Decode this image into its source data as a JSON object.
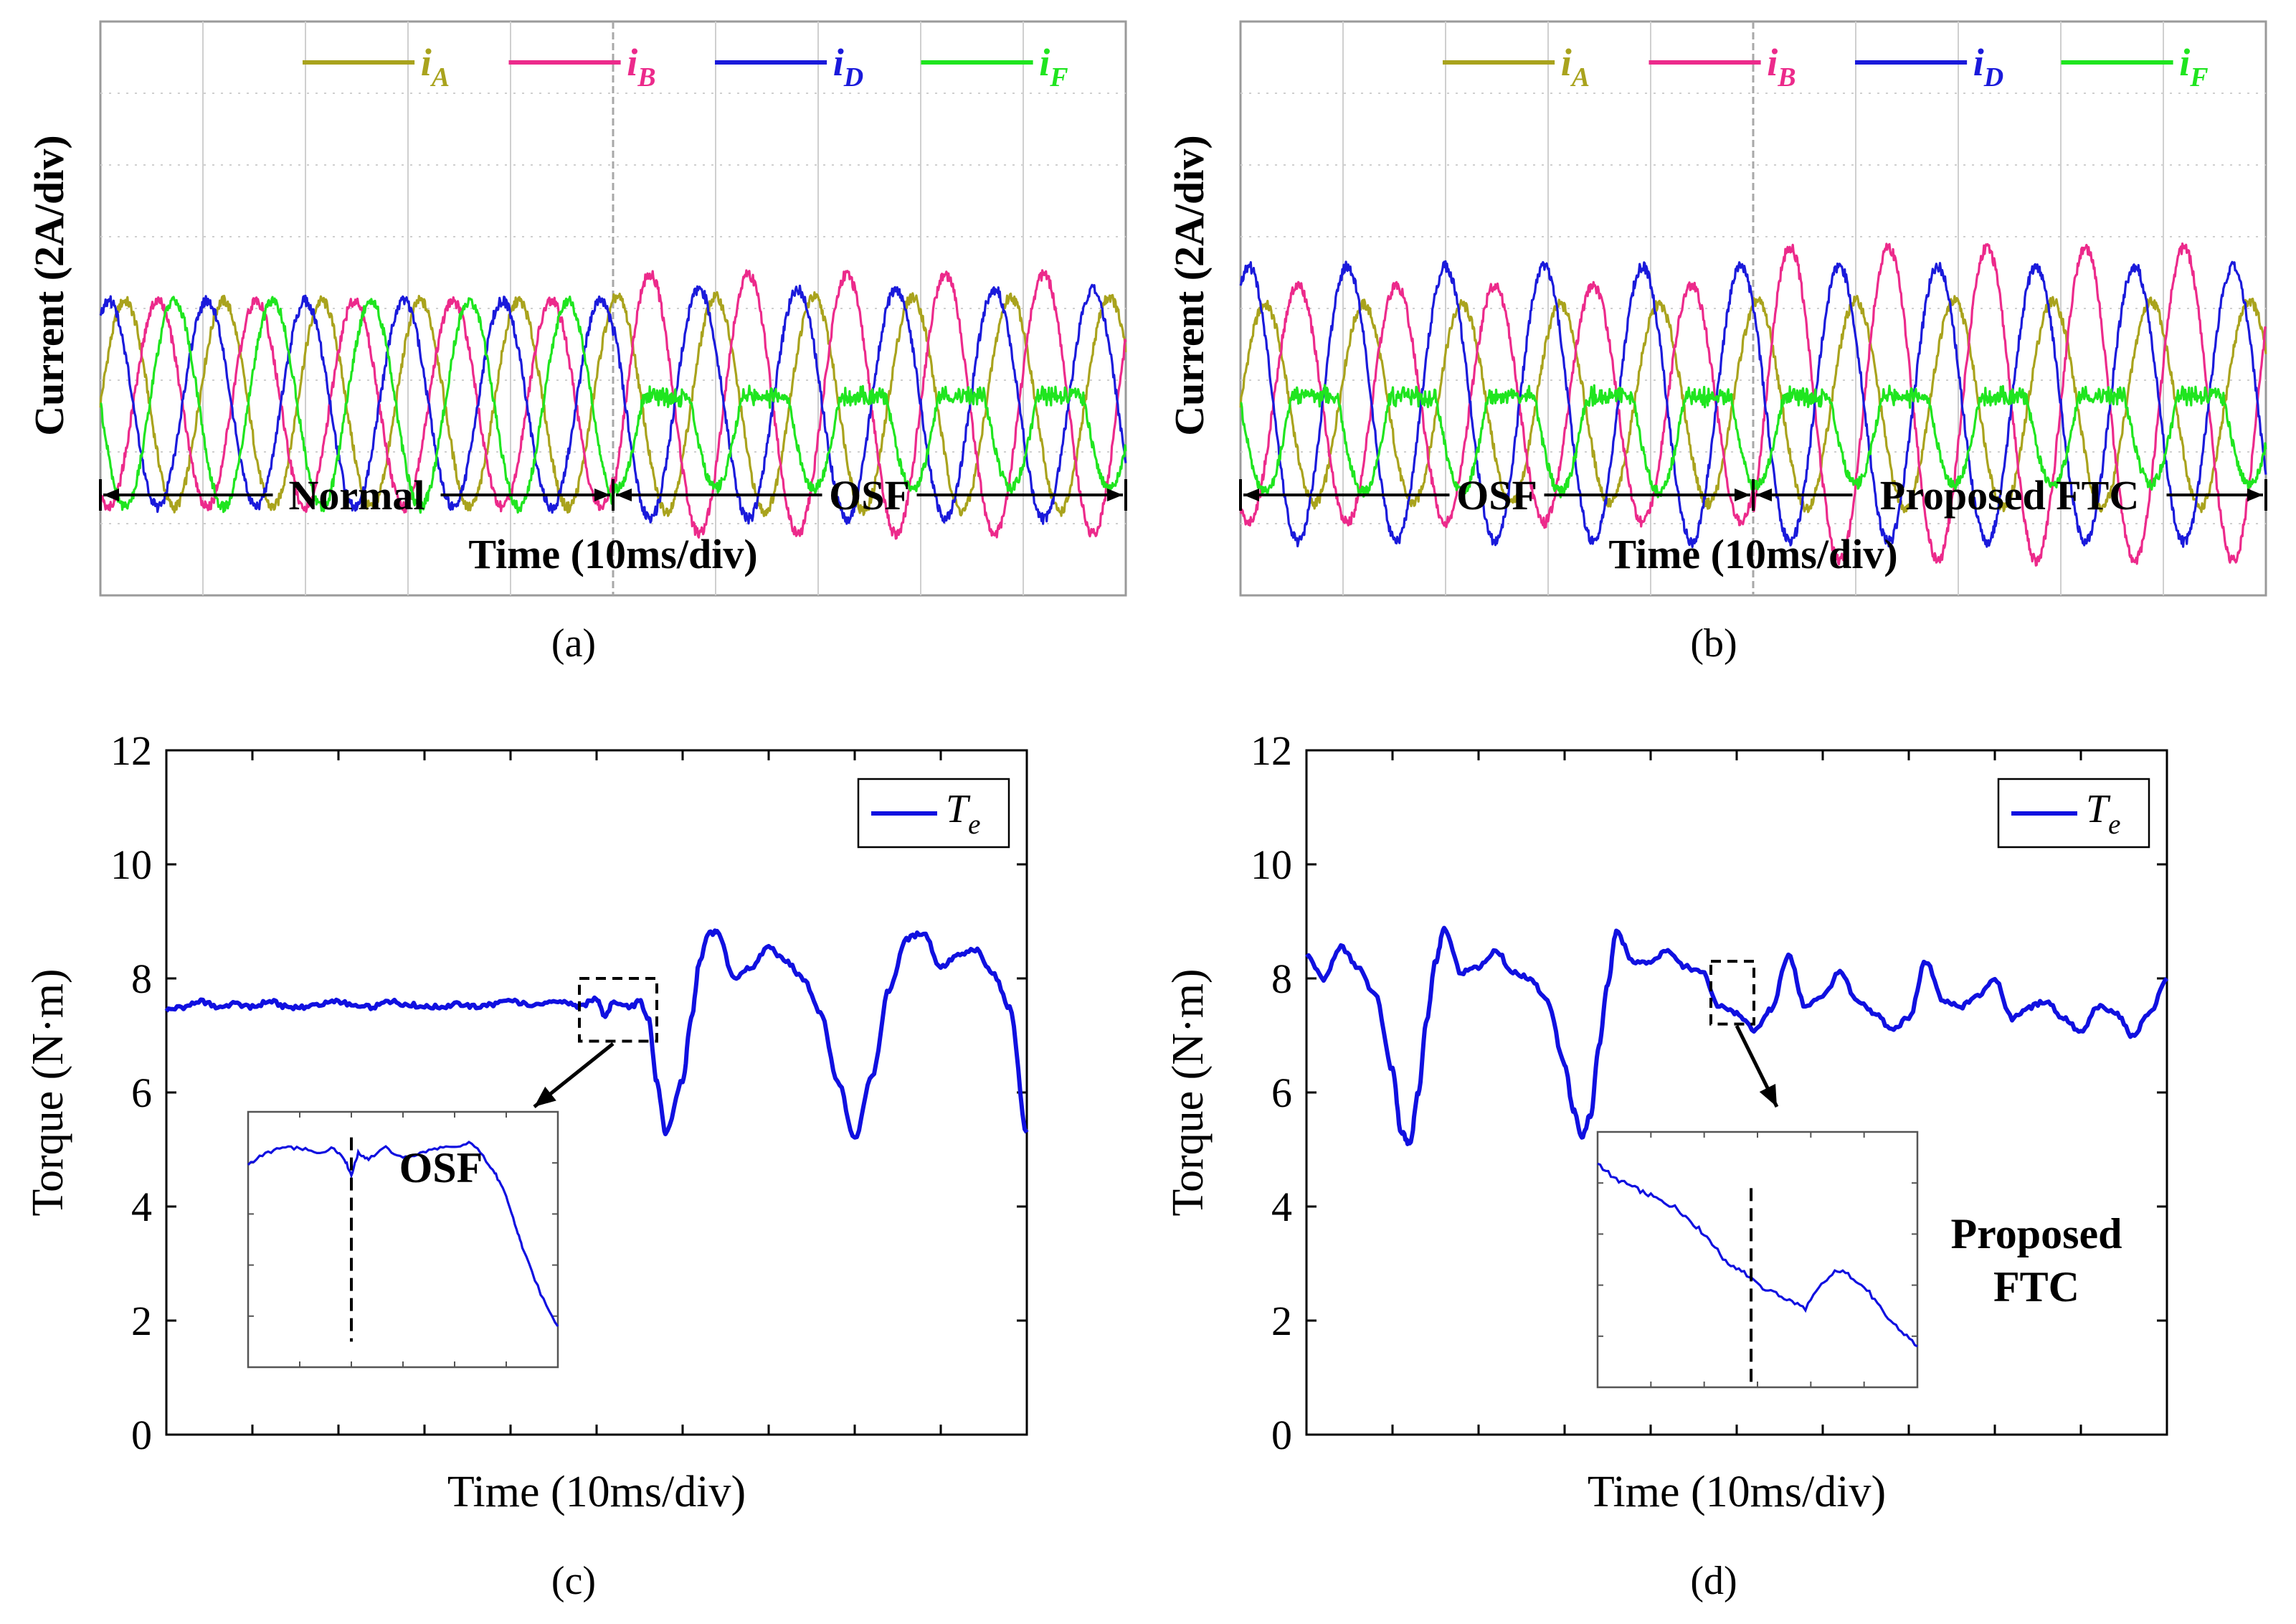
{
  "figure": {
    "panels": [
      {
        "id": "a",
        "caption": "(a)"
      },
      {
        "id": "b",
        "caption": "(b)"
      },
      {
        "id": "c",
        "caption": "(c)"
      },
      {
        "id": "d",
        "caption": "(d)"
      }
    ]
  },
  "chart_data": [
    {
      "panel": "a",
      "type": "line",
      "ylabel": "Current (2A/div)",
      "xlabel": "Time (10ms/div)",
      "grid": true,
      "legend": {
        "position": "top-right",
        "entries": [
          "iA",
          "iB",
          "iD",
          "iF"
        ]
      },
      "legend_label_parts": [
        {
          "main": "i",
          "sub": "A"
        },
        {
          "main": "i",
          "sub": "B"
        },
        {
          "main": "i",
          "sub": "D"
        },
        {
          "main": "i",
          "sub": "F"
        }
      ],
      "units": {
        "y": "A",
        "x": "ms"
      },
      "colors": {
        "iA": "#a9a31d",
        "iB": "#ec2a8b",
        "iD": "#1a1adb",
        "iF": "#1fe51f"
      },
      "segments": [
        {
          "label": "Normal",
          "x_range_ms": [
            0,
            50
          ]
        },
        {
          "label": "OSF",
          "x_range_ms": [
            50,
            100
          ]
        }
      ],
      "x_range_ms": [
        0,
        100
      ],
      "y_range_A": [
        -5,
        10
      ],
      "series": [
        {
          "name": "iA",
          "segments": [
            {
              "from_ms": 0,
              "to_ms": 50,
              "amplitude_A": 2.7,
              "phase_deg": 0
            },
            {
              "from_ms": 50,
              "to_ms": 100,
              "amplitude_A": 2.8,
              "phase_deg": 0
            }
          ]
        },
        {
          "name": "iB",
          "segments": [
            {
              "from_ms": 0,
              "to_ms": 50,
              "amplitude_A": 2.7,
              "phase_deg": -120
            },
            {
              "from_ms": 50,
              "to_ms": 100,
              "amplitude_A": 3.4,
              "phase_deg": -120
            }
          ]
        },
        {
          "name": "iD",
          "segments": [
            {
              "from_ms": 0,
              "to_ms": 50,
              "amplitude_A": 2.7,
              "phase_deg": 60
            },
            {
              "from_ms": 50,
              "to_ms": 100,
              "amplitude_A": 3.0,
              "phase_deg": 60
            }
          ]
        },
        {
          "name": "iF",
          "segments": [
            {
              "from_ms": 0,
              "to_ms": 50,
              "amplitude_A": 2.7,
              "phase_deg": 180
            },
            {
              "from_ms": 50,
              "to_ms": 100,
              "amplitude_A": 2.2,
              "phase_deg": 180
            }
          ]
        }
      ],
      "fundamental_period_ms": 9.6
    },
    {
      "panel": "b",
      "type": "line",
      "ylabel": "Current (2A/div)",
      "xlabel": "Time (10ms/div)",
      "grid": true,
      "legend": {
        "position": "top-right",
        "entries": [
          "iA",
          "iB",
          "iD",
          "iF"
        ]
      },
      "legend_label_parts": [
        {
          "main": "i",
          "sub": "A"
        },
        {
          "main": "i",
          "sub": "B"
        },
        {
          "main": "i",
          "sub": "D"
        },
        {
          "main": "i",
          "sub": "F"
        }
      ],
      "units": {
        "y": "A",
        "x": "ms"
      },
      "colors": {
        "iA": "#a9a31d",
        "iB": "#ec2a8b",
        "iD": "#1a1adb",
        "iF": "#1fe51f"
      },
      "segments": [
        {
          "label": "OSF",
          "x_range_ms": [
            0,
            50
          ]
        },
        {
          "label": "Proposed FTC",
          "x_range_ms": [
            50,
            100
          ]
        }
      ],
      "x_range_ms": [
        0,
        100
      ],
      "y_range_A": [
        -5,
        10
      ],
      "series": [
        {
          "name": "iA",
          "segments": [
            {
              "from_ms": 0,
              "to_ms": 50,
              "amplitude_A": 2.6,
              "phase_deg": 0
            },
            {
              "from_ms": 50,
              "to_ms": 100,
              "amplitude_A": 2.7,
              "phase_deg": 0
            }
          ]
        },
        {
          "name": "iB",
          "segments": [
            {
              "from_ms": 0,
              "to_ms": 50,
              "amplitude_A": 3.1,
              "phase_deg": -120
            },
            {
              "from_ms": 50,
              "to_ms": 100,
              "amplitude_A": 4.1,
              "phase_deg": -120
            }
          ]
        },
        {
          "name": "iD",
          "segments": [
            {
              "from_ms": 0,
              "to_ms": 50,
              "amplitude_A": 3.6,
              "phase_deg": 60
            },
            {
              "from_ms": 50,
              "to_ms": 100,
              "amplitude_A": 3.6,
              "phase_deg": 60
            }
          ]
        },
        {
          "name": "iF",
          "segments": [
            {
              "from_ms": 0,
              "to_ms": 50,
              "amplitude_A": 2.3,
              "phase_deg": 180
            },
            {
              "from_ms": 50,
              "to_ms": 100,
              "amplitude_A": 2.1,
              "phase_deg": 180
            }
          ]
        }
      ],
      "fundamental_period_ms": 9.6
    },
    {
      "panel": "c",
      "type": "line",
      "xlabel": "Time  (10ms/div)",
      "ylabel": "Torque (N·m)",
      "ylim": [
        0,
        12
      ],
      "yticks": [
        0,
        2,
        4,
        6,
        8,
        10,
        12
      ],
      "ytick_labels": [
        "0",
        "2",
        "4",
        "6",
        "8",
        "10",
        "12"
      ],
      "xlim": [
        0,
        100
      ],
      "grid": false,
      "legend": {
        "position": "top-right",
        "entries": [
          "Te"
        ]
      },
      "legend_label_parts": [
        {
          "main": "T",
          "sub": "e"
        }
      ],
      "colors": {
        "Te": "#1010e0"
      },
      "series": [
        {
          "name": "Te",
          "x": [
            0,
            2,
            4,
            6,
            8,
            10,
            12,
            14,
            16,
            18,
            20,
            22,
            24,
            26,
            28,
            30,
            32,
            34,
            36,
            38,
            40,
            42,
            44,
            46,
            48,
            50,
            51,
            52,
            54,
            55,
            56,
            57,
            58,
            60,
            61,
            62,
            63,
            64,
            66,
            68,
            70,
            72,
            74,
            76,
            78,
            80,
            82,
            84,
            86,
            88,
            90,
            92,
            94,
            96,
            98,
            100
          ],
          "y": [
            7.45,
            7.5,
            7.6,
            7.5,
            7.55,
            7.5,
            7.6,
            7.5,
            7.5,
            7.55,
            7.6,
            7.5,
            7.5,
            7.6,
            7.55,
            7.5,
            7.5,
            7.55,
            7.5,
            7.55,
            7.6,
            7.55,
            7.55,
            7.6,
            7.5,
            7.65,
            7.35,
            7.6,
            7.5,
            7.6,
            7.3,
            6.2,
            5.3,
            6.2,
            7.3,
            8.3,
            8.8,
            8.8,
            8.0,
            8.2,
            8.55,
            8.3,
            8.0,
            7.4,
            6.2,
            5.2,
            6.3,
            7.8,
            8.7,
            8.8,
            8.2,
            8.4,
            8.5,
            8.1,
            7.5,
            5.3
          ]
        }
      ],
      "zoom_window": {
        "x_range": [
          48,
          57
        ],
        "y_range": [
          6.9,
          8.0
        ]
      },
      "inset": {
        "annotation": "OSF",
        "x": [
          0,
          5,
          10,
          15,
          20,
          25,
          28,
          30,
          32,
          35,
          40,
          45,
          50,
          55,
          60,
          65,
          70,
          72,
          75,
          78,
          80,
          85,
          90
        ],
        "y": [
          7.4,
          7.5,
          7.55,
          7.55,
          7.5,
          7.55,
          7.45,
          7.3,
          7.5,
          7.45,
          7.55,
          7.45,
          7.5,
          7.55,
          7.55,
          7.6,
          7.4,
          7.3,
          7.1,
          6.8,
          6.6,
          6.2,
          5.9
        ],
        "event_x": 30
      }
    },
    {
      "panel": "d",
      "type": "line",
      "xlabel": "Time  (10ms/div)",
      "ylabel": "Torque (N·m)",
      "ylim": [
        0,
        12
      ],
      "yticks": [
        0,
        2,
        4,
        6,
        8,
        10,
        12
      ],
      "ytick_labels": [
        "0",
        "2",
        "4",
        "6",
        "8",
        "10",
        "12"
      ],
      "xlim": [
        0,
        100
      ],
      "grid": false,
      "legend": {
        "position": "top-right",
        "entries": [
          "Te"
        ]
      },
      "legend_label_parts": [
        {
          "main": "T",
          "sub": "e"
        }
      ],
      "colors": {
        "Te": "#1010e0"
      },
      "series": [
        {
          "name": "Te",
          "x": [
            0,
            2,
            4,
            6,
            8,
            10,
            11,
            12,
            13,
            14,
            15,
            16,
            18,
            20,
            22,
            24,
            26,
            28,
            30,
            31,
            32,
            33,
            34,
            35,
            36,
            38,
            40,
            42,
            44,
            46,
            48,
            50,
            52,
            54,
            56,
            58,
            60,
            62,
            64,
            66,
            68,
            70,
            72,
            74,
            76,
            78,
            80,
            82,
            84,
            86,
            88,
            90,
            92,
            94,
            96,
            98,
            100
          ],
          "y": [
            8.4,
            8.0,
            8.55,
            8.2,
            7.7,
            6.4,
            5.3,
            5.1,
            6.0,
            7.3,
            8.3,
            8.85,
            8.1,
            8.2,
            8.5,
            8.1,
            8.0,
            7.6,
            6.5,
            5.7,
            5.2,
            5.6,
            6.8,
            7.9,
            8.8,
            8.3,
            8.3,
            8.5,
            8.2,
            8.1,
            7.5,
            7.4,
            7.1,
            7.45,
            8.4,
            7.5,
            7.7,
            8.1,
            7.6,
            7.4,
            7.1,
            7.3,
            8.3,
            7.6,
            7.5,
            7.7,
            8.0,
            7.3,
            7.5,
            7.6,
            7.3,
            7.05,
            7.5,
            7.4,
            7.0,
            7.4,
            8.0
          ]
        }
      ],
      "zoom_window": {
        "x_range": [
          47,
          52
        ],
        "y_range": [
          7.2,
          8.3
        ]
      },
      "inset": {
        "annotation": "Proposed FTC",
        "annotation_lines": [
          "Proposed",
          "FTC"
        ],
        "x": [
          0,
          5,
          10,
          15,
          20,
          25,
          30,
          35,
          40,
          45,
          50,
          55,
          60,
          65,
          70,
          75,
          80,
          85,
          90,
          95,
          100
        ],
        "y": [
          8.0,
          7.9,
          7.85,
          7.8,
          7.75,
          7.7,
          7.6,
          7.5,
          7.35,
          7.3,
          7.2,
          7.15,
          7.1,
          7.05,
          7.2,
          7.3,
          7.25,
          7.15,
          7.0,
          6.9,
          6.8
        ],
        "event_x": 48
      }
    }
  ]
}
